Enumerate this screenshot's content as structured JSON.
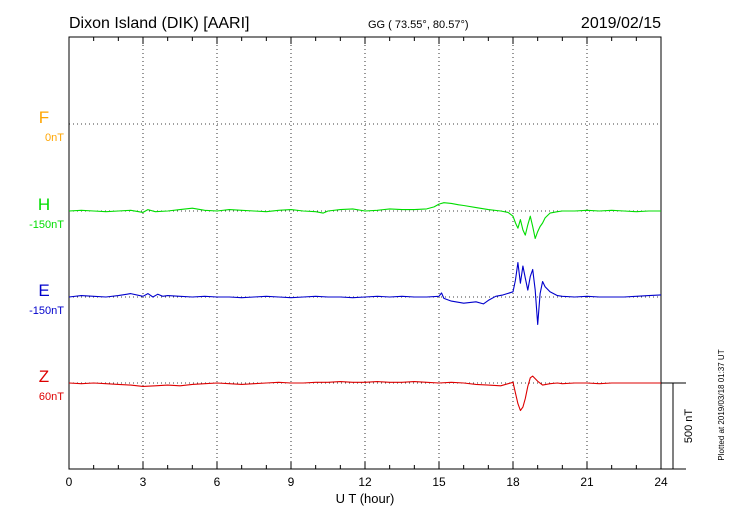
{
  "header": {
    "station": "Dixon Island (DIK)  [AARI]",
    "coords": "GG ( 73.55°,  80.57°)",
    "date": "2019/02/15"
  },
  "footer": {
    "plotted": "Plotted at 2019/03/18 01:37 UT"
  },
  "chart_data": {
    "type": "line",
    "xlabel": "U T (hour)",
    "x_ticks": [
      "0",
      "3",
      "6",
      "9",
      "12",
      "15",
      "18",
      "21",
      "24"
    ],
    "xlim": [
      0,
      24
    ],
    "grid": true,
    "scale_bar": {
      "label": "500 nT",
      "value_nT": 500
    },
    "colors": {
      "F": "#ffa500",
      "H": "#00dd00",
      "E": "#0000cc",
      "Z": "#dd0000"
    },
    "series": [
      {
        "name": "F",
        "offset": "0nT",
        "color": "#ffa500",
        "x": [],
        "y": []
      },
      {
        "name": "H",
        "offset": "-150nT",
        "color": "#00dd00",
        "x": [
          0,
          0.5,
          1,
          1.5,
          2,
          2.5,
          3,
          3.2,
          3.5,
          4,
          4.5,
          5,
          5.5,
          6,
          6.5,
          7,
          7.5,
          8,
          8.5,
          9,
          9.5,
          10,
          10.3,
          10.5,
          11,
          11.5,
          12,
          12.5,
          13,
          13.5,
          14,
          14.5,
          14.8,
          15,
          15.2,
          15.5,
          15.8,
          16,
          16.5,
          17,
          17.5,
          17.8,
          18,
          18.1,
          18.2,
          18.3,
          18.4,
          18.5,
          18.6,
          18.7,
          18.8,
          18.9,
          19,
          19.1,
          19.2,
          19.3,
          19.5,
          19.8,
          20,
          20.5,
          21,
          21.5,
          22,
          22.5,
          23,
          23.5,
          24
        ],
        "y": [
          0,
          4,
          0,
          -4,
          0,
          4,
          -8,
          8,
          -4,
          0,
          8,
          16,
          4,
          0,
          8,
          4,
          0,
          -4,
          4,
          8,
          0,
          -4,
          -12,
          0,
          8,
          12,
          0,
          4,
          12,
          8,
          8,
          12,
          24,
          40,
          48,
          44,
          36,
          32,
          20,
          8,
          0,
          -8,
          -30,
          -70,
          -100,
          -50,
          -110,
          -140,
          -80,
          -30,
          -90,
          -160,
          -120,
          -90,
          -70,
          -40,
          -12,
          -4,
          0,
          0,
          4,
          0,
          4,
          0,
          -4,
          0,
          0
        ]
      },
      {
        "name": "E",
        "offset": "-150nT",
        "color": "#0000cc",
        "x": [
          0,
          0.5,
          1,
          1.5,
          2,
          2.5,
          3,
          3.2,
          3.4,
          3.6,
          3.8,
          4,
          4.5,
          5,
          5.5,
          6,
          6.5,
          7,
          7.5,
          8,
          8.5,
          9,
          9.5,
          10,
          10.5,
          11,
          11.5,
          12,
          12.5,
          13,
          13.5,
          14,
          14.5,
          15,
          15.1,
          15.2,
          15.5,
          16,
          16.5,
          16.8,
          17,
          17.3,
          17.6,
          18,
          18.1,
          18.2,
          18.3,
          18.4,
          18.5,
          18.6,
          18.7,
          18.8,
          18.9,
          19,
          19.1,
          19.2,
          19.3,
          19.5,
          19.8,
          20,
          20.5,
          21,
          21.5,
          22,
          22.5,
          23,
          23.5,
          24
        ],
        "y": [
          0,
          8,
          4,
          0,
          8,
          20,
          4,
          20,
          0,
          16,
          4,
          8,
          4,
          0,
          4,
          0,
          0,
          -4,
          0,
          4,
          0,
          -4,
          0,
          4,
          0,
          0,
          -4,
          0,
          4,
          0,
          4,
          0,
          0,
          4,
          24,
          -8,
          -24,
          -36,
          -28,
          -40,
          -20,
          4,
          12,
          30,
          100,
          200,
          80,
          180,
          110,
          40,
          120,
          160,
          40,
          -160,
          20,
          90,
          60,
          30,
          8,
          4,
          0,
          4,
          0,
          0,
          0,
          4,
          8,
          12
        ]
      },
      {
        "name": "Z",
        "offset": "60nT",
        "color": "#dd0000",
        "x": [
          0,
          0.5,
          1,
          1.5,
          2,
          2.5,
          3,
          3.5,
          4,
          4.5,
          5,
          5.5,
          6,
          6.5,
          7,
          7.5,
          8,
          8.5,
          9,
          9.5,
          10,
          10.5,
          11,
          11.5,
          12,
          12.5,
          13,
          13.5,
          14,
          14.5,
          15,
          15.5,
          16,
          16.5,
          17,
          17.5,
          17.8,
          18,
          18.1,
          18.2,
          18.3,
          18.4,
          18.5,
          18.6,
          18.7,
          18.8,
          19,
          19.2,
          19.5,
          19.8,
          20,
          20.5,
          21,
          21.5,
          22,
          22.5,
          23,
          23.5,
          24
        ],
        "y": [
          0,
          -4,
          0,
          -4,
          -8,
          -12,
          -20,
          -16,
          -12,
          -16,
          -8,
          -4,
          0,
          -4,
          -8,
          -4,
          0,
          4,
          0,
          0,
          4,
          4,
          8,
          4,
          4,
          8,
          4,
          4,
          8,
          4,
          0,
          4,
          0,
          -8,
          -12,
          -16,
          -4,
          4,
          -60,
          -120,
          -160,
          -140,
          -90,
          -20,
          30,
          40,
          10,
          -12,
          -4,
          0,
          -4,
          0,
          0,
          -4,
          0,
          0,
          0,
          0,
          0
        ]
      }
    ]
  }
}
